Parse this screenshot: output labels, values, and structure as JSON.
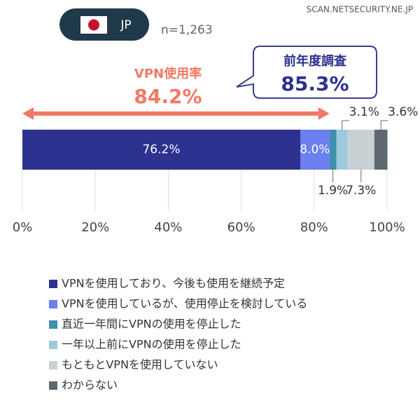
{
  "chart_data": {
    "type": "bar",
    "orientation": "horizontal",
    "stacked": true,
    "country": "JP",
    "sample": "n=1,263",
    "source": "SCAN.NETSECURITY.NE.JP",
    "annotations": [
      {
        "text": "VPN使用率",
        "value": 84.2,
        "value_label": "84.2%",
        "color": "#f07a64"
      },
      {
        "text": "前年度調査",
        "value": 85.3,
        "value_label": "85.3%",
        "color": "#2d3190"
      }
    ],
    "series": [
      {
        "name": "VPNを使用しており、今後も使用を継続予定",
        "color": "#2d3190",
        "values": [
          76.2
        ],
        "value_labels": [
          "76.2%"
        ]
      },
      {
        "name": "VPNを使用しているが、使用停止を検討している",
        "color": "#6b7ff0",
        "values": [
          8.0
        ],
        "value_labels": [
          "8.0%"
        ]
      },
      {
        "name": "直近一年間にVPNの使用を停止した",
        "color": "#3f8fae",
        "values": [
          1.9
        ],
        "value_labels": [
          "1.9%"
        ]
      },
      {
        "name": "一年以上前にVPNの使用を停止した",
        "color": "#9ccadc",
        "values": [
          3.1
        ],
        "value_labels": [
          "3.1%"
        ]
      },
      {
        "name": "もともとVPNを使用していない",
        "color": "#c9d0d4",
        "values": [
          7.3
        ],
        "value_labels": [
          "7.3%"
        ]
      },
      {
        "name": "わからない",
        "color": "#5d6870",
        "values": [
          3.6
        ],
        "value_labels": [
          "3.6%"
        ]
      }
    ],
    "xlim": [
      0,
      100
    ],
    "xticks": [
      {
        "value": 0,
        "label": "0%"
      },
      {
        "value": 20,
        "label": "20%"
      },
      {
        "value": 40,
        "label": "40%"
      },
      {
        "value": 60,
        "label": "60%"
      },
      {
        "value": 80,
        "label": "80%"
      },
      {
        "value": 100,
        "label": "100%"
      }
    ],
    "grid": true
  }
}
